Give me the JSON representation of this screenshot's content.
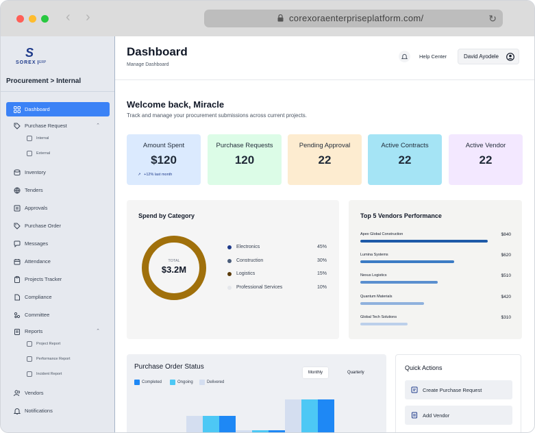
{
  "browser": {
    "url": "corexoraenterpriseplatform.com/"
  },
  "sidebar": {
    "logo": {
      "mark": "S",
      "name": "SOREX",
      "suffix": "ERP"
    },
    "breadcrumb": "Procurement > Internal",
    "items": [
      {
        "label": "Dashboard",
        "icon": "grid-icon",
        "active": true
      },
      {
        "label": "Purchase Request",
        "icon": "tag-icon",
        "expanded": true,
        "children": [
          {
            "label": "Internal",
            "icon": "box-icon"
          },
          {
            "label": "External",
            "icon": "grid-box-icon"
          }
        ]
      },
      {
        "label": "Inventory",
        "icon": "database-icon"
      },
      {
        "label": "Tenders",
        "icon": "globe-icon"
      },
      {
        "label": "Approvals",
        "icon": "checklist-icon"
      },
      {
        "label": "Purchase Order",
        "icon": "tag-icon"
      },
      {
        "label": "Messages",
        "icon": "chat-icon"
      },
      {
        "label": "Attendance",
        "icon": "calendar-icon"
      },
      {
        "label": "Projects Tracker",
        "icon": "clipboard-icon"
      },
      {
        "label": "Compliance",
        "icon": "document-icon"
      },
      {
        "label": "Committee",
        "icon": "people-icon"
      },
      {
        "label": "Reports",
        "icon": "folder-icon",
        "expanded": true,
        "children": [
          {
            "label": "Project Report",
            "icon": "report-icon"
          },
          {
            "label": "Performance Report",
            "icon": "report-icon"
          },
          {
            "label": "Incident Report",
            "icon": "report-icon"
          }
        ]
      },
      {
        "label": "Vendors",
        "icon": "users-icon"
      },
      {
        "label": "Notifications",
        "icon": "bell-icon"
      }
    ]
  },
  "header": {
    "title": "Dashboard",
    "subtitle": "Manage Dashboard",
    "help_label": "Help Center",
    "user_name": "David Ayodele"
  },
  "welcome": {
    "title": "Welcome back, Miracle",
    "subtitle": "Track and manage your procurement submissions across current projects."
  },
  "kpis": [
    {
      "label": "Amount Spent",
      "value": "$120",
      "trend": "+12% last month",
      "color": "#dbeafe"
    },
    {
      "label": "Purchase Requests",
      "value": "120",
      "color": "#dcfce7"
    },
    {
      "label": "Pending Approval",
      "value": "22",
      "color": "#fdecd0"
    },
    {
      "label": "Active Contracts",
      "value": "22",
      "color": "#a5e4f5"
    },
    {
      "label": "Active Vendor",
      "value": "22",
      "color": "#f3e8ff"
    }
  ],
  "spend": {
    "title": "Spend by Category",
    "total_label": "TOTAL",
    "total_value": "$3.2M",
    "donut_color": "#a0700b",
    "categories": [
      {
        "name": "Electronics",
        "pct": "45%",
        "color": "#1e3a8a"
      },
      {
        "name": "Construction",
        "pct": "30%",
        "color": "#4b5d7a"
      },
      {
        "name": "Logistics",
        "pct": "15%",
        "color": "#5a3a0a"
      },
      {
        "name": "Professional Services",
        "pct": "10%",
        "color": "#e5e7eb"
      }
    ]
  },
  "vendors": {
    "title": "Top 5 Vendors Performance",
    "items": [
      {
        "name": "Apex Global Construction",
        "value": "$840",
        "amount": 840,
        "color": "#1e5aa8"
      },
      {
        "name": "Lumina Systems",
        "value": "$620",
        "amount": 620,
        "color": "#3b7bc4"
      },
      {
        "name": "Nexus Logistics",
        "value": "$510",
        "amount": 510,
        "color": "#5a8fcf"
      },
      {
        "name": "Quantum Materials",
        "value": "$420",
        "amount": 420,
        "color": "#8fb1dd"
      },
      {
        "name": "Global Tech Solutions",
        "value": "$310",
        "amount": 310,
        "color": "#bcd0ea"
      }
    ]
  },
  "po_status": {
    "title": "Purchase Order Status",
    "legend": [
      {
        "label": "Completed",
        "color": "#1e88f5"
      },
      {
        "label": "Ongoing",
        "color": "#4dc8f5"
      },
      {
        "label": "Delivered",
        "color": "#d4def0"
      }
    ],
    "toggles": [
      {
        "label": "Monthly",
        "active": true
      },
      {
        "label": "Quarterly",
        "active": false
      }
    ]
  },
  "quick_actions": {
    "title": "Quick Actions",
    "items": [
      {
        "label": "Create Purchase Request",
        "icon": "document-plus-icon"
      },
      {
        "label": "Add Vendor",
        "icon": "vendor-add-icon"
      }
    ]
  }
}
